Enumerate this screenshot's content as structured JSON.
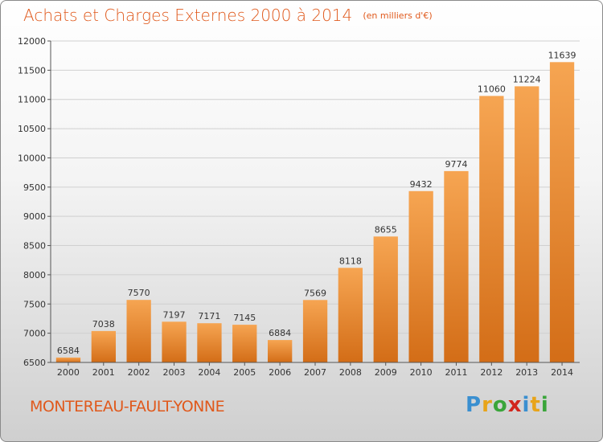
{
  "title": "Achats et Charges Externes 2000 à 2014",
  "unit_note": "(en milliers d'€)",
  "city": "MONTEREAU-FAULT-YONNE",
  "logo": {
    "letters": [
      "P",
      "r",
      "o",
      "x",
      "i",
      "t",
      "i"
    ],
    "colors": [
      "#3a8fd0",
      "#e8a41a",
      "#3aa53a",
      "#d2261d",
      "#3a8fd0",
      "#e8a41a",
      "#3aa53a"
    ]
  },
  "colors": {
    "accent": "#e0591c",
    "bar_light": "#f6a552",
    "bar_dark": "#d36d17",
    "grid": "#d0d0d0"
  },
  "chart_data": {
    "type": "bar",
    "categories": [
      "2000",
      "2001",
      "2002",
      "2003",
      "2004",
      "2005",
      "2006",
      "2007",
      "2008",
      "2009",
      "2010",
      "2011",
      "2012",
      "2013",
      "2014"
    ],
    "values": [
      6584,
      7038,
      7570,
      7197,
      7171,
      7145,
      6884,
      7569,
      8118,
      8655,
      9432,
      9774,
      11060,
      11224,
      11639
    ],
    "ylim": [
      6500,
      12000
    ],
    "yticks": [
      6500,
      7000,
      7500,
      8000,
      8500,
      9000,
      9500,
      10000,
      10500,
      11000,
      11500,
      12000
    ],
    "grid": true,
    "xlabel": "",
    "ylabel": ""
  }
}
